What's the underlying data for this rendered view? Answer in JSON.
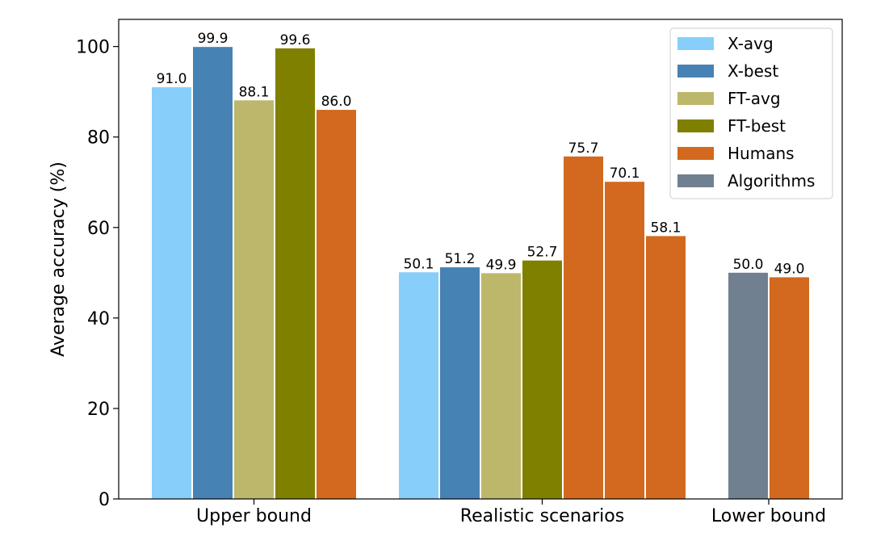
{
  "chart_data": {
    "type": "bar",
    "title": "",
    "xlabel": "",
    "ylabel": "Average accuracy (%)",
    "ylim": [
      0,
      106
    ],
    "yticks": [
      0,
      20,
      40,
      60,
      80,
      100
    ],
    "grid": false,
    "legend_position": "top-right",
    "legend": [
      {
        "label": "X-avg",
        "color": "#87CEFA"
      },
      {
        "label": "X-best",
        "color": "#4682B4"
      },
      {
        "label": "FT-avg",
        "color": "#BDB76B"
      },
      {
        "label": "FT-best",
        "color": "#808000"
      },
      {
        "label": "Humans",
        "color": "#D2691E"
      },
      {
        "label": "Algorithms",
        "color": "#708090"
      }
    ],
    "groups": [
      {
        "category": "Upper bound",
        "bars": [
          {
            "series": "X-avg",
            "value": 91.0,
            "label": "91.0"
          },
          {
            "series": "X-best",
            "value": 99.9,
            "label": "99.9"
          },
          {
            "series": "FT-avg",
            "value": 88.1,
            "label": "88.1"
          },
          {
            "series": "FT-best",
            "value": 99.6,
            "label": "99.6"
          },
          {
            "series": "Humans",
            "value": 86.0,
            "label": "86.0"
          }
        ]
      },
      {
        "category": "Realistic scenarios",
        "bars": [
          {
            "series": "X-avg",
            "value": 50.1,
            "label": "50.1"
          },
          {
            "series": "X-best",
            "value": 51.2,
            "label": "51.2"
          },
          {
            "series": "FT-avg",
            "value": 49.9,
            "label": "49.9"
          },
          {
            "series": "FT-best",
            "value": 52.7,
            "label": "52.7"
          },
          {
            "series": "Humans",
            "value": 75.7,
            "label": "75.7"
          },
          {
            "series": "Humans",
            "value": 70.1,
            "label": "70.1"
          },
          {
            "series": "Humans",
            "value": 58.1,
            "label": "58.1"
          }
        ]
      },
      {
        "category": "Lower bound",
        "bars": [
          {
            "series": "Algorithms",
            "value": 50.0,
            "label": "50.0"
          },
          {
            "series": "Humans",
            "value": 49.0,
            "label": "49.0"
          }
        ]
      }
    ]
  }
}
